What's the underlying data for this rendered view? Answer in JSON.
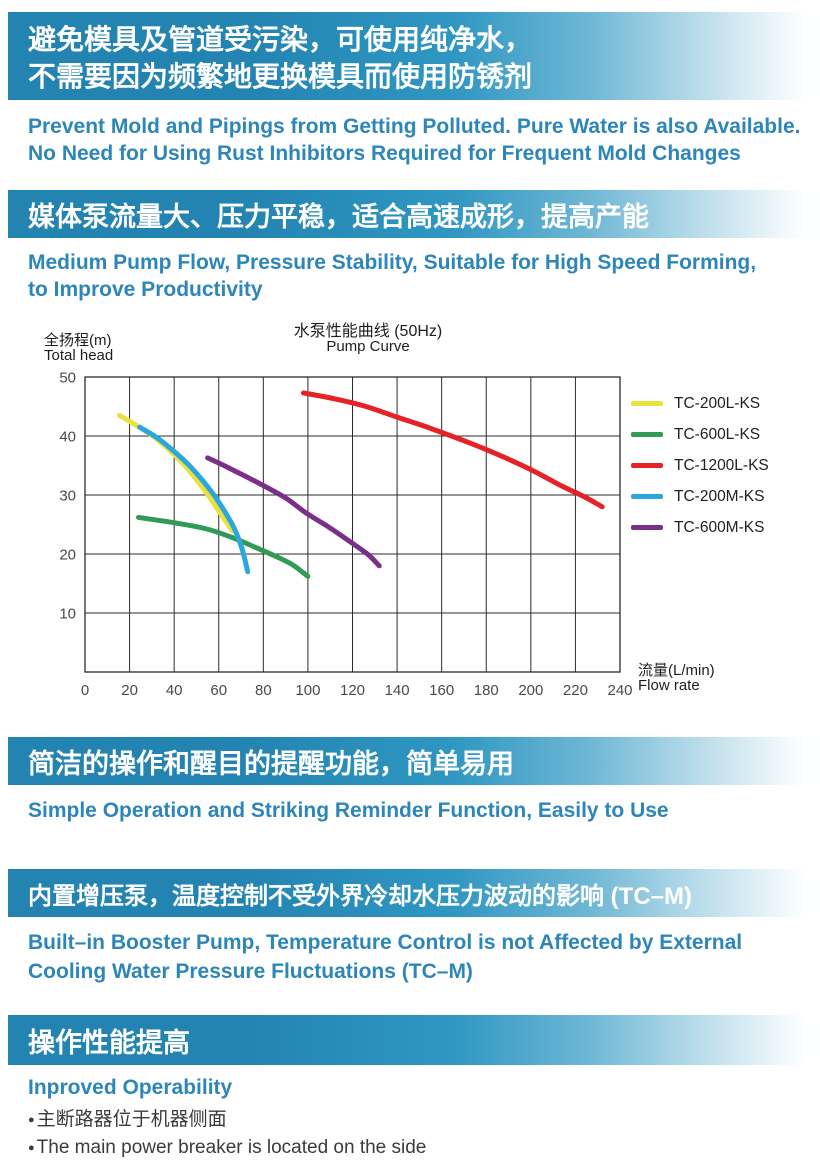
{
  "colors": {
    "banner_left": "#2383B1",
    "banner_mid": "#2F97C2",
    "banner_step": "#70B8D5",
    "banner_light": "#B9DCEA",
    "banner_end": "#FEFFFF",
    "banner_text": "#FFFFFF",
    "heading_blue": "#2C86B9",
    "body_text": "#3B3B3B",
    "axis_text": "#4A4A4A",
    "grid_color": "#2B2B2B",
    "chart_text": "#1E1E1E"
  },
  "sections": {
    "s1": {
      "cn1": "避免模具及管道受污染，可使用纯净水，",
      "cn2": "不需要因为频繁地更换模具而使用防锈剂",
      "en1": "Prevent Mold and Pipings from Getting Polluted. Pure Water is also Available.",
      "en2": "No Need for Using Rust Inhibitors Required for Frequent Mold Changes"
    },
    "s2": {
      "cn": "媒体泵流量大、压力平稳，适合高速成形，提高产能",
      "en1": "Medium Pump Flow, Pressure Stability, Suitable for High Speed Forming,",
      "en2": "to Improve Productivity"
    },
    "s3": {
      "cn": "简洁的操作和醒目的提醒功能，简单易用",
      "en": "Simple Operation and Striking Reminder Function, Easily to Use"
    },
    "s4": {
      "cn": "内置增压泵，温度控制不受外界冷却水压力波动的影响 (TC–M)",
      "en1": "Built–in Booster Pump, Temperature Control is not Affected by External",
      "en2": "Cooling Water Pressure Fluctuations (TC–M)"
    },
    "s5": {
      "cn": "操作性能提高",
      "en": "Inproved Operability",
      "bullet_glyph": "●",
      "bullet1_cn": "主断路器位于机器侧面",
      "bullet2_en": "The main power breaker is located on the side"
    }
  },
  "chart_data": {
    "type": "line",
    "title_cn": "水泵性能曲线 (50Hz)",
    "title_en": "Pump Curve",
    "ylabel_cn": "全扬程(m)",
    "ylabel_en": "Total head",
    "xlabel_cn": "流量(L/min)",
    "xlabel_en": "Flow rate",
    "xlim": [
      0,
      240
    ],
    "ylim": [
      0,
      50
    ],
    "x_ticks": [
      0,
      20,
      40,
      60,
      80,
      100,
      120,
      140,
      160,
      180,
      200,
      220,
      240
    ],
    "y_ticks": [
      10,
      20,
      30,
      40,
      50
    ],
    "grid": true,
    "legend_position": "right",
    "series": [
      {
        "name": "TC-200L-KS",
        "color": "#EAE03F",
        "points": [
          [
            15.5,
            43.5
          ],
          [
            23,
            41.8
          ],
          [
            30,
            40.1
          ],
          [
            37,
            37.9
          ],
          [
            44,
            35.3
          ],
          [
            50,
            32.6
          ],
          [
            55,
            30.1
          ],
          [
            60,
            27.3
          ],
          [
            66,
            24
          ]
        ]
      },
      {
        "name": "TC-600L-KS",
        "color": "#2F9B55",
        "points": [
          [
            24,
            26.2
          ],
          [
            40,
            25.3
          ],
          [
            54,
            24.3
          ],
          [
            66,
            22.8
          ],
          [
            76,
            21.2
          ],
          [
            85,
            19.7
          ],
          [
            93,
            18.2
          ],
          [
            100,
            16.2
          ]
        ]
      },
      {
        "name": "TC-1200L-KS",
        "color": "#E62227",
        "points": [
          [
            98,
            47.3
          ],
          [
            112,
            46.3
          ],
          [
            126,
            45
          ],
          [
            140,
            43.2
          ],
          [
            155,
            41.3
          ],
          [
            170,
            39.2
          ],
          [
            185,
            36.9
          ],
          [
            200,
            34.3
          ],
          [
            214,
            31.5
          ],
          [
            224,
            29.7
          ],
          [
            232,
            28
          ]
        ]
      },
      {
        "name": "TC-200M-KS",
        "color": "#2BA7DE",
        "points": [
          [
            24.5,
            41.5
          ],
          [
            32,
            39.8
          ],
          [
            39,
            37.7
          ],
          [
            46,
            35.3
          ],
          [
            52,
            32.8
          ],
          [
            58,
            29.9
          ],
          [
            63,
            27
          ],
          [
            67,
            24.3
          ],
          [
            70.5,
            20.8
          ],
          [
            73,
            17
          ]
        ]
      },
      {
        "name": "TC-600M-KS",
        "color": "#7C2F88",
        "points": [
          [
            55,
            36.3
          ],
          [
            65,
            34.5
          ],
          [
            77,
            32.2
          ],
          [
            90,
            29.5
          ],
          [
            99,
            27
          ],
          [
            110,
            24.4
          ],
          [
            120,
            21.8
          ],
          [
            127,
            19.9
          ],
          [
            132,
            18
          ]
        ]
      }
    ]
  }
}
